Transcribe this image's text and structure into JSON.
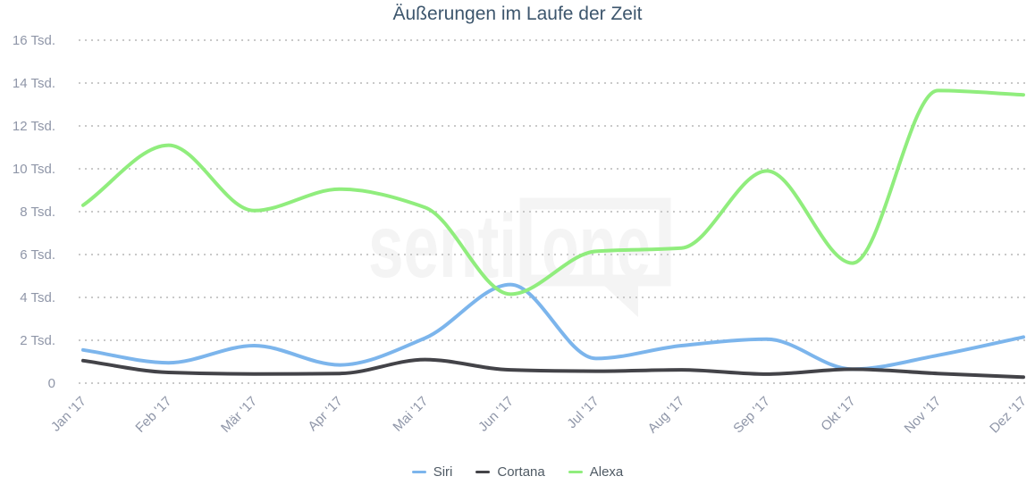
{
  "chart_data": {
    "type": "line",
    "curve": "spline",
    "title": "Äußerungen im Laufe der Zeit",
    "x": [
      "Jan '17",
      "Feb '17",
      "Mär '17",
      "Apr '17",
      "Mai '17",
      "Jun '17",
      "Jul '17",
      "Aug '17",
      "Sep '17",
      "Okt '17",
      "Nov '17",
      "Dez '17"
    ],
    "series": [
      {
        "name": "Siri",
        "color": "#7cb5ec",
        "values": [
          1550,
          950,
          1750,
          850,
          2100,
          4600,
          1150,
          1750,
          2050,
          650,
          1300,
          2150
        ]
      },
      {
        "name": "Cortana",
        "color": "#434348",
        "values": [
          1050,
          500,
          430,
          450,
          1100,
          620,
          560,
          620,
          420,
          650,
          450,
          280
        ]
      },
      {
        "name": "Alexa",
        "color": "#90ed7d",
        "values": [
          8300,
          11100,
          8050,
          9050,
          8200,
          4150,
          6150,
          6300,
          9900,
          5600,
          13650,
          13450
        ]
      }
    ],
    "ylim": [
      0,
      16000
    ],
    "yticks": [
      {
        "value": 0,
        "label": "0"
      },
      {
        "value": 2000,
        "label": "2 Tsd."
      },
      {
        "value": 4000,
        "label": "4 Tsd."
      },
      {
        "value": 6000,
        "label": "6 Tsd."
      },
      {
        "value": 8000,
        "label": "8 Tsd."
      },
      {
        "value": 10000,
        "label": "10 Tsd."
      },
      {
        "value": 12000,
        "label": "12 Tsd."
      },
      {
        "value": 14000,
        "label": "14 Tsd."
      },
      {
        "value": 16000,
        "label": "16 Tsd."
      }
    ],
    "unit": "Tsd.",
    "grid": "horizontal-dotted",
    "legend_position": "bottom-center"
  },
  "watermark": {
    "left_text": "senti",
    "bubble_text": "one"
  },
  "colors": {
    "title": "#3d566d",
    "axis_label": "#8f96a8",
    "legend_label": "#4f5a64",
    "grid": "#c9c9c9",
    "watermark": "#f4f4f4",
    "background": "#ffffff",
    "siri": "#7cb5ec",
    "cortana": "#434348",
    "alexa": "#90ed7d"
  }
}
